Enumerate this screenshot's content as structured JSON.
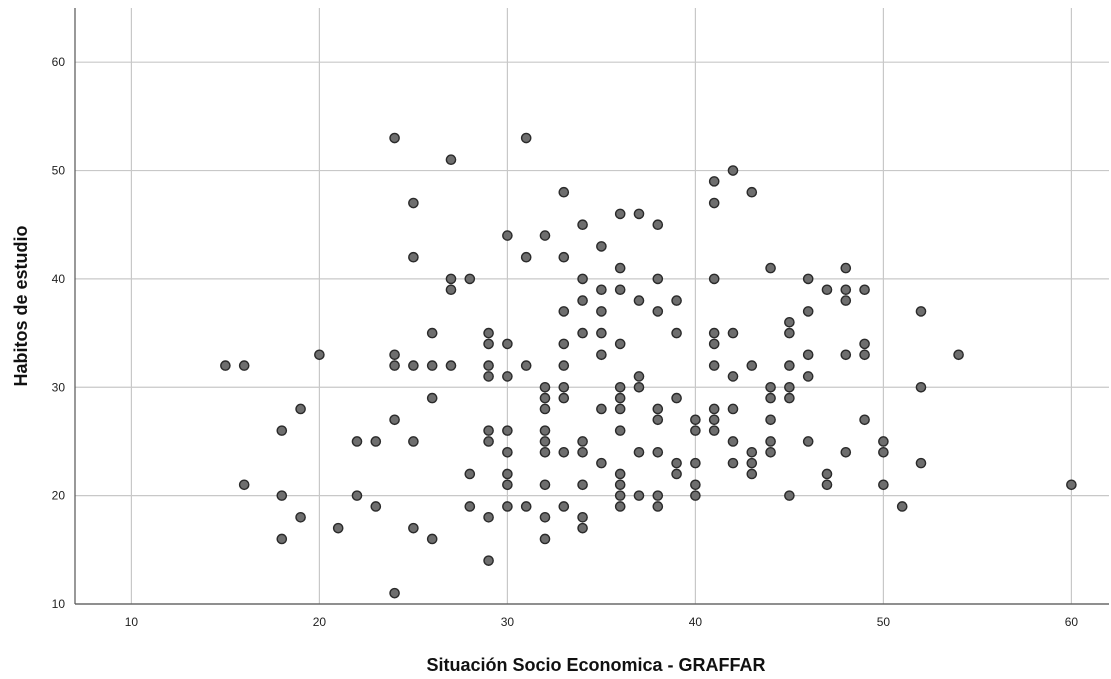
{
  "chart_data": {
    "type": "scatter",
    "xlabel": "Situación Socio Economica - GRAFFAR",
    "ylabel": "Habitos de estudio",
    "xlim": [
      7,
      62
    ],
    "ylim": [
      10,
      65
    ],
    "xticks": [
      10,
      20,
      30,
      40,
      50,
      60
    ],
    "yticks": [
      10,
      20,
      30,
      40,
      50,
      60
    ],
    "grid": true,
    "marker_color": "#6e6e6e",
    "marker_edge_color": "#2a2a2a",
    "points": [
      [
        15,
        32
      ],
      [
        16,
        32
      ],
      [
        16,
        21
      ],
      [
        18,
        26
      ],
      [
        18,
        20
      ],
      [
        18,
        16
      ],
      [
        19,
        28
      ],
      [
        19,
        18
      ],
      [
        20,
        33
      ],
      [
        21,
        17
      ],
      [
        22,
        25
      ],
      [
        22,
        20
      ],
      [
        23,
        25
      ],
      [
        23,
        19
      ],
      [
        24,
        53
      ],
      [
        24,
        33
      ],
      [
        24,
        32
      ],
      [
        24,
        27
      ],
      [
        24,
        11
      ],
      [
        25,
        47
      ],
      [
        25,
        42
      ],
      [
        25,
        32
      ],
      [
        25,
        25
      ],
      [
        25,
        17
      ],
      [
        26,
        35
      ],
      [
        26,
        32
      ],
      [
        26,
        29
      ],
      [
        26,
        16
      ],
      [
        27,
        51
      ],
      [
        27,
        40
      ],
      [
        27,
        39
      ],
      [
        27,
        32
      ],
      [
        28,
        40
      ],
      [
        28,
        22
      ],
      [
        28,
        19
      ],
      [
        29,
        35
      ],
      [
        29,
        34
      ],
      [
        29,
        32
      ],
      [
        29,
        31
      ],
      [
        29,
        26
      ],
      [
        29,
        25
      ],
      [
        29,
        18
      ],
      [
        29,
        14
      ],
      [
        30,
        44
      ],
      [
        30,
        34
      ],
      [
        30,
        31
      ],
      [
        30,
        26
      ],
      [
        30,
        24
      ],
      [
        30,
        22
      ],
      [
        30,
        21
      ],
      [
        30,
        19
      ],
      [
        31,
        53
      ],
      [
        31,
        42
      ],
      [
        31,
        32
      ],
      [
        31,
        19
      ],
      [
        32,
        44
      ],
      [
        32,
        30
      ],
      [
        32,
        29
      ],
      [
        32,
        28
      ],
      [
        32,
        26
      ],
      [
        32,
        25
      ],
      [
        32,
        24
      ],
      [
        32,
        21
      ],
      [
        32,
        18
      ],
      [
        32,
        16
      ],
      [
        33,
        48
      ],
      [
        33,
        42
      ],
      [
        33,
        37
      ],
      [
        33,
        34
      ],
      [
        33,
        32
      ],
      [
        33,
        30
      ],
      [
        33,
        29
      ],
      [
        33,
        24
      ],
      [
        33,
        19
      ],
      [
        34,
        45
      ],
      [
        34,
        40
      ],
      [
        34,
        38
      ],
      [
        34,
        35
      ],
      [
        34,
        25
      ],
      [
        34,
        24
      ],
      [
        34,
        21
      ],
      [
        34,
        18
      ],
      [
        34,
        17
      ],
      [
        35,
        43
      ],
      [
        35,
        39
      ],
      [
        35,
        37
      ],
      [
        35,
        35
      ],
      [
        35,
        33
      ],
      [
        35,
        28
      ],
      [
        35,
        23
      ],
      [
        36,
        46
      ],
      [
        36,
        41
      ],
      [
        36,
        39
      ],
      [
        36,
        34
      ],
      [
        36,
        30
      ],
      [
        36,
        29
      ],
      [
        36,
        28
      ],
      [
        36,
        26
      ],
      [
        36,
        22
      ],
      [
        36,
        21
      ],
      [
        36,
        20
      ],
      [
        36,
        19
      ],
      [
        37,
        46
      ],
      [
        37,
        38
      ],
      [
        37,
        31
      ],
      [
        37,
        30
      ],
      [
        37,
        24
      ],
      [
        37,
        20
      ],
      [
        38,
        45
      ],
      [
        38,
        40
      ],
      [
        38,
        37
      ],
      [
        38,
        28
      ],
      [
        38,
        27
      ],
      [
        38,
        24
      ],
      [
        38,
        20
      ],
      [
        38,
        19
      ],
      [
        39,
        38
      ],
      [
        39,
        35
      ],
      [
        39,
        29
      ],
      [
        39,
        23
      ],
      [
        39,
        22
      ],
      [
        40,
        27
      ],
      [
        40,
        26
      ],
      [
        40,
        23
      ],
      [
        40,
        21
      ],
      [
        40,
        20
      ],
      [
        41,
        49
      ],
      [
        41,
        47
      ],
      [
        41,
        40
      ],
      [
        41,
        35
      ],
      [
        41,
        34
      ],
      [
        41,
        32
      ],
      [
        41,
        28
      ],
      [
        41,
        27
      ],
      [
        41,
        26
      ],
      [
        42,
        50
      ],
      [
        42,
        35
      ],
      [
        42,
        31
      ],
      [
        42,
        28
      ],
      [
        42,
        25
      ],
      [
        42,
        23
      ],
      [
        43,
        48
      ],
      [
        43,
        32
      ],
      [
        43,
        24
      ],
      [
        43,
        23
      ],
      [
        43,
        22
      ],
      [
        44,
        41
      ],
      [
        44,
        30
      ],
      [
        44,
        29
      ],
      [
        44,
        27
      ],
      [
        44,
        25
      ],
      [
        44,
        24
      ],
      [
        45,
        36
      ],
      [
        45,
        35
      ],
      [
        45,
        32
      ],
      [
        45,
        30
      ],
      [
        45,
        29
      ],
      [
        45,
        20
      ],
      [
        46,
        40
      ],
      [
        46,
        37
      ],
      [
        46,
        33
      ],
      [
        46,
        31
      ],
      [
        46,
        25
      ],
      [
        47,
        39
      ],
      [
        47,
        22
      ],
      [
        47,
        21
      ],
      [
        48,
        41
      ],
      [
        48,
        39
      ],
      [
        48,
        38
      ],
      [
        48,
        33
      ],
      [
        48,
        24
      ],
      [
        49,
        39
      ],
      [
        49,
        34
      ],
      [
        49,
        33
      ],
      [
        49,
        27
      ],
      [
        50,
        25
      ],
      [
        50,
        24
      ],
      [
        50,
        21
      ],
      [
        51,
        19
      ],
      [
        52,
        37
      ],
      [
        52,
        30
      ],
      [
        52,
        23
      ],
      [
        54,
        33
      ],
      [
        60,
        21
      ]
    ]
  }
}
